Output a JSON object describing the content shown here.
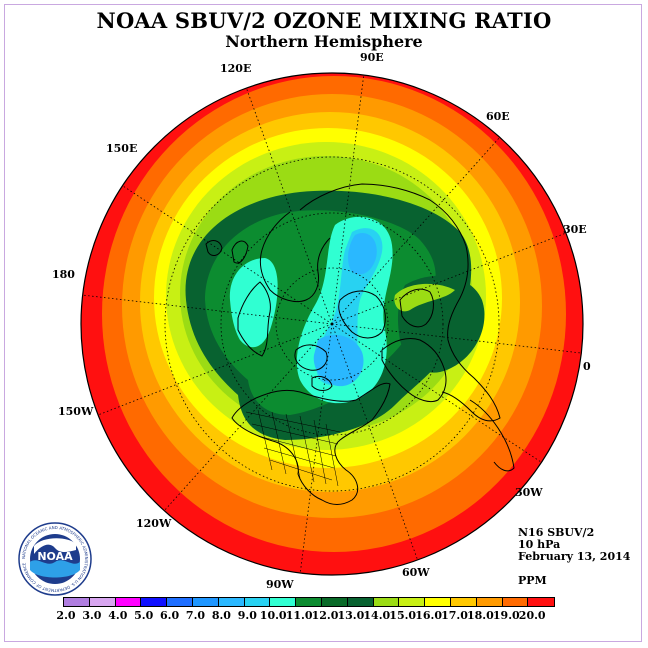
{
  "title": "NOAA SBUV/2 OZONE MIXING RATIO",
  "subtitle": "Northern Hemisphere",
  "longitude_labels": [
    "120E",
    "90E",
    "60E",
    "150E",
    "30E",
    "180",
    "0",
    "150W",
    "30W",
    "120W",
    "60W",
    "90W"
  ],
  "info": {
    "instrument": "N16 SBUV/2",
    "level": "10 hPa",
    "date": "February 13, 2014",
    "units": "PPM"
  },
  "colorbar": {
    "ticks": [
      "2.0",
      "3.0",
      "4.0",
      "5.0",
      "6.0",
      "7.0",
      "8.0",
      "9.0",
      "10.0",
      "11.0",
      "12.0",
      "13.0",
      "14.0",
      "15.0",
      "16.0",
      "17.0",
      "18.0",
      "19.0",
      "20.0"
    ],
    "colors": [
      "#b07ee0",
      "#d8a6f0",
      "#ff00ff",
      "#1010ff",
      "#1e6eff",
      "#1e96ff",
      "#2ab8ff",
      "#28d2f2",
      "#30ffd2",
      "#0c8c30",
      "#096a28",
      "#086230",
      "#9bdc14",
      "#c8f014",
      "#ffff00",
      "#ffc800",
      "#ff9a00",
      "#ff6a00",
      "#ff1010"
    ],
    "end_color": "#8a5a3c"
  },
  "logo_text": "NOAA",
  "logo_ring_text": "NATIONAL OCEANIC AND ATMOSPHERIC ADMINISTRATION U.S. DEPARTMENT OF COMMERCE",
  "map_colors": {
    "ring_17_19": "#ff1010",
    "ring_16_17": "#ff6a00",
    "ring_15_16": "#ff9a00",
    "ring_14_15": "#ffc800",
    "ring_13_14": "#ffff00",
    "ring_12_13": "#c8f014",
    "ring_11_12": "#9bdc14",
    "ring_10_11": "#086230",
    "ring_9_10": "#0c8c30",
    "ring_8_9": "#30ffd2",
    "ring_7_8": "#28d2f2",
    "ring_6_7": "#2ab8ff"
  }
}
